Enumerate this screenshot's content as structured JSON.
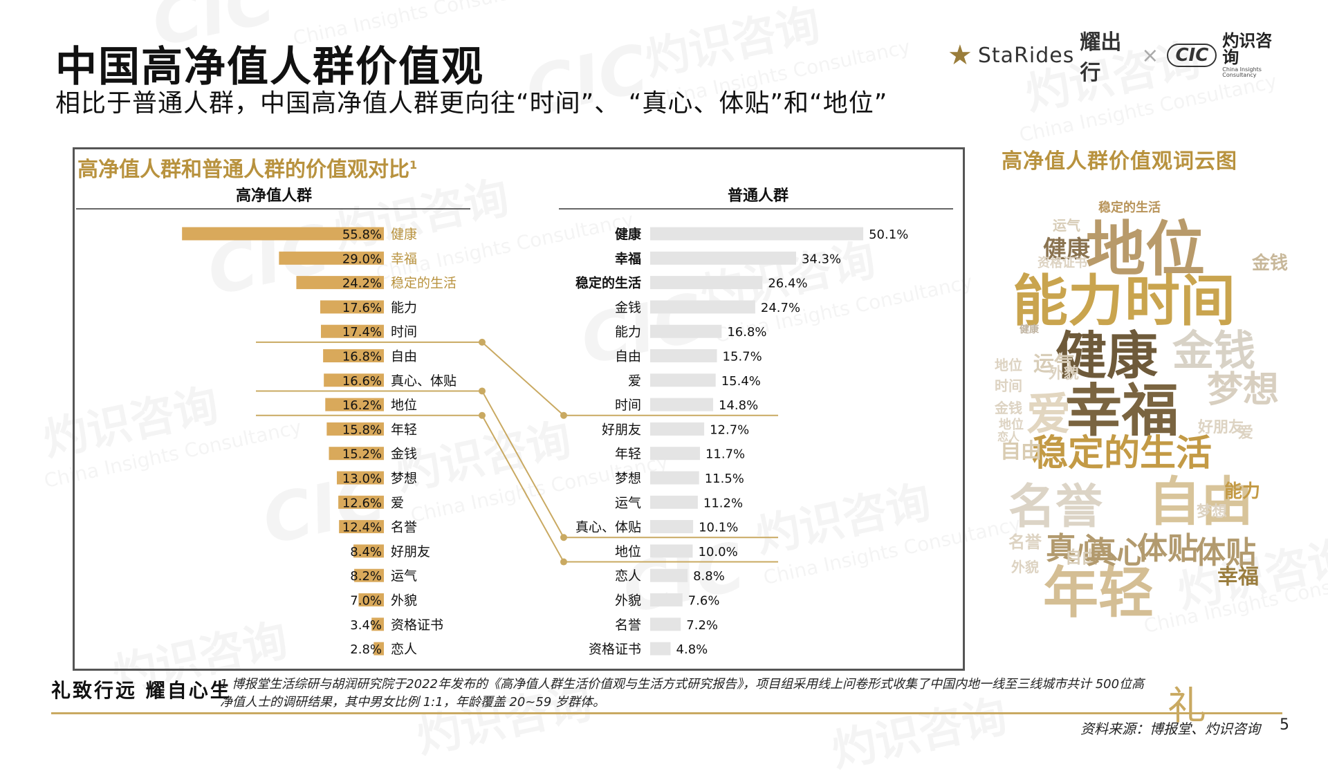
{
  "page": {
    "title": "中国高净值人群价值观",
    "subtitle": "相比于普通人群，中国高净值人群更向往“时间”、 “真心、体贴”和“地位”",
    "slogan": "礼致行远 耀自心生",
    "footnote": "1 博报堂生活综研与胡润研究院于2022年发布的《高净值人群生活价值观与生活方式研究报告》，项目组采用线上问卷形式收集了中国内地一线至三线城市共计 500位高净值人士的调研结果，其中男女比例 1:1，年龄覆盖 20~59 岁群体。",
    "source": "资料来源：博报堂、灼识咨询",
    "page_number": "5"
  },
  "logo": {
    "brand": "StaRides",
    "brand_cn": "耀出行",
    "separator": "×",
    "partner_abbr": "CIC",
    "partner_cn": "灼识咨询",
    "partner_en": "China Insights Consultancy"
  },
  "watermark": {
    "cn": "灼识咨询",
    "abbr": "CIC",
    "en": "China Insights Consultancy"
  },
  "colors": {
    "hnw_bar": "#d9a95b",
    "general_bar": "#e4e4e4",
    "gold_text": "#b8923e",
    "connector": "#c9a961"
  },
  "chart_data": {
    "type": "bar",
    "title": "高净值人群和普通人群的价值观对比",
    "title_note": "1",
    "left": {
      "name": "高净值人群",
      "categories": [
        "健康",
        "幸福",
        "稳定的生活",
        "能力",
        "时间",
        "自由",
        "真心、体贴",
        "地位",
        "年轻",
        "金钱",
        "梦想",
        "爱",
        "名誉",
        "好朋友",
        "运气",
        "外貌",
        "资格证书",
        "恋人"
      ],
      "values": [
        55.8,
        29.0,
        24.2,
        17.6,
        17.4,
        16.8,
        16.6,
        16.2,
        15.8,
        15.2,
        13.0,
        12.6,
        12.4,
        8.4,
        8.2,
        7.0,
        3.4,
        2.8
      ],
      "labels": [
        "55.8%",
        "29.0%",
        "24.2%",
        "17.6%",
        "17.4%",
        "16.8%",
        "16.6%",
        "16.2%",
        "15.8%",
        "15.2%",
        "13.0%",
        "12.6%",
        "12.4%",
        "8.4%",
        "8.2%",
        "7.0%",
        "3.4%",
        "2.8%"
      ],
      "highlight_top": 3
    },
    "right": {
      "name": "普通人群",
      "categories": [
        "健康",
        "幸福",
        "稳定的生活",
        "金钱",
        "能力",
        "自由",
        "爱",
        "时间",
        "好朋友",
        "年轻",
        "梦想",
        "运气",
        "真心、体贴",
        "地位",
        "恋人",
        "外貌",
        "名誉",
        "资格证书"
      ],
      "values": [
        50.1,
        34.3,
        26.4,
        24.7,
        16.8,
        15.7,
        15.4,
        14.8,
        12.7,
        11.7,
        11.5,
        11.2,
        10.1,
        10.0,
        8.8,
        7.6,
        7.2,
        4.8
      ],
      "labels": [
        "50.1%",
        "34.3%",
        "26.4%",
        "24.7%",
        "16.8%",
        "15.7%",
        "15.4%",
        "14.8%",
        "12.7%",
        "11.7%",
        "11.5%",
        "11.2%",
        "10.1%",
        "10.0%",
        "8.8%",
        "7.6%",
        "7.2%",
        "4.8%"
      ],
      "bold_top": 3
    },
    "connections": [
      {
        "item": "时间",
        "left_index": 4,
        "right_index": 7
      },
      {
        "item": "真心、体贴",
        "left_index": 6,
        "right_index": 12
      },
      {
        "item": "地位",
        "left_index": 7,
        "right_index": 13
      }
    ]
  },
  "wordcloud": {
    "title": "高净值人群价值观词云图",
    "words": [
      {
        "text": "地位",
        "color": "#b89a6a"
      },
      {
        "text": "能力",
        "color": "#c9a44e"
      },
      {
        "text": "时间",
        "color": "#c9a44e"
      },
      {
        "text": "健康",
        "color": "#6e5a3a"
      },
      {
        "text": "幸福",
        "color": "#7a6440"
      },
      {
        "text": "金钱",
        "color": "#d8d2c6"
      },
      {
        "text": "爱",
        "color": "#e2d6c0"
      },
      {
        "text": "梦想",
        "color": "#d8cfc0"
      },
      {
        "text": "稳定的生活",
        "color": "#c39a45"
      },
      {
        "text": "自由",
        "color": "#d8c49a"
      },
      {
        "text": "名誉",
        "color": "#dcd4c6"
      },
      {
        "text": "真心、体贴",
        "color": "#b29a6e"
      },
      {
        "text": "年轻",
        "color": "#d4be94"
      },
      {
        "text": "幸福",
        "color": "#9a7d3e"
      },
      {
        "text": "健康",
        "color": "#8a7350"
      },
      {
        "text": "稳定的生活",
        "color": "#b8945a"
      },
      {
        "text": "运气",
        "color": "#d8cdb8"
      },
      {
        "text": "资格证书",
        "color": "#ddd3c2"
      },
      {
        "text": "金钱",
        "color": "#c8b89a"
      },
      {
        "text": "自由",
        "color": "#d9ccb2"
      },
      {
        "text": "能力",
        "color": "#c39a45"
      },
      {
        "text": "好朋友",
        "color": "#ddd3c2"
      },
      {
        "text": "爱",
        "color": "#ddd3c2"
      },
      {
        "text": "运气",
        "color": "#d8cdb8"
      },
      {
        "text": "外貌",
        "color": "#ddd3c2"
      },
      {
        "text": "地位",
        "color": "#ddd3c2"
      },
      {
        "text": "时间",
        "color": "#ddd3c2"
      },
      {
        "text": "金钱",
        "color": "#ddd3c2"
      },
      {
        "text": "地位",
        "color": "#ddd3c2"
      },
      {
        "text": "恋人",
        "color": "#ddd3c2"
      },
      {
        "text": "自由",
        "color": "#d8cdb8"
      },
      {
        "text": "梦想",
        "color": "#ddd3c2"
      },
      {
        "text": "名誉",
        "color": "#ddd3c2"
      },
      {
        "text": "外貌",
        "color": "#ddd3c2"
      },
      {
        "text": "真心",
        "color": "#b29a6e"
      },
      {
        "text": "体贴",
        "color": "#b29a6e"
      },
      {
        "text": "健康",
        "color": "#bfb3a0"
      }
    ]
  }
}
